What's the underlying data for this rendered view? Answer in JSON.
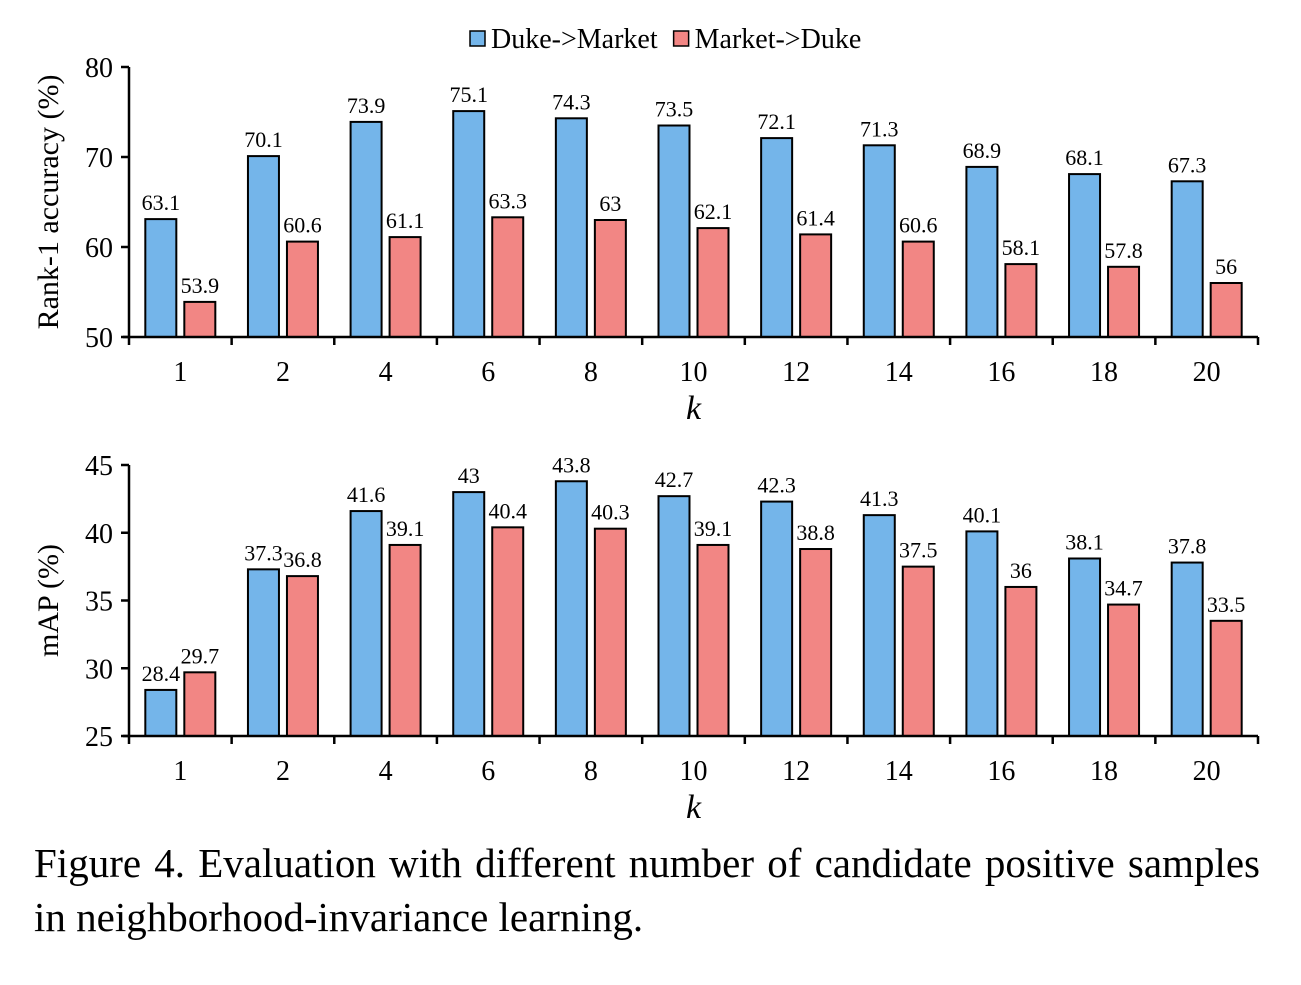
{
  "legend": [
    {
      "name": "Duke->Market",
      "color": "#74b5ea"
    },
    {
      "name": "Market->Duke",
      "color": "#f28684"
    }
  ],
  "chart_data": [
    {
      "type": "bar",
      "xlabel": "k",
      "ylabel": "Rank-1 accuracy (%)",
      "ylim": [
        50,
        80
      ],
      "yticks": [
        "50",
        "60",
        "70",
        "80"
      ],
      "categories": [
        "1",
        "2",
        "4",
        "6",
        "8",
        "10",
        "12",
        "14",
        "16",
        "18",
        "20"
      ],
      "legend_position": "top-center",
      "grid": false,
      "series": [
        {
          "name": "Duke->Market",
          "color": "#74b5ea",
          "values": [
            63.1,
            70.1,
            73.9,
            75.1,
            74.3,
            73.5,
            72.1,
            71.3,
            68.9,
            68.1,
            67.3
          ],
          "labels": [
            "63.1",
            "70.1",
            "73.9",
            "75.1",
            "74.3",
            "73.5",
            "72.1",
            "71.3",
            "68.9",
            "68.1",
            "67.3"
          ]
        },
        {
          "name": "Market->Duke",
          "color": "#f28684",
          "values": [
            53.9,
            60.6,
            61.1,
            63.3,
            63,
            62.1,
            61.4,
            60.6,
            58.1,
            57.8,
            56
          ],
          "labels": [
            "53.9",
            "60.6",
            "61.1",
            "63.3",
            "63",
            "62.1",
            "61.4",
            "60.6",
            "58.1",
            "57.8",
            "56"
          ]
        }
      ]
    },
    {
      "type": "bar",
      "xlabel": "k",
      "ylabel": "mAP (%)",
      "ylim": [
        25,
        45
      ],
      "yticks": [
        "25",
        "30",
        "35",
        "40",
        "45"
      ],
      "categories": [
        "1",
        "2",
        "4",
        "6",
        "8",
        "10",
        "12",
        "14",
        "16",
        "18",
        "20"
      ],
      "grid": false,
      "series": [
        {
          "name": "Duke->Market",
          "color": "#74b5ea",
          "values": [
            28.4,
            37.3,
            41.6,
            43,
            43.8,
            42.7,
            42.3,
            41.3,
            40.1,
            38.1,
            37.8
          ],
          "labels": [
            "28.4",
            "37.3",
            "41.6",
            "43",
            "43.8",
            "42.7",
            "42.3",
            "41.3",
            "40.1",
            "38.1",
            "37.8"
          ]
        },
        {
          "name": "Market->Duke",
          "color": "#f28684",
          "values": [
            29.7,
            36.8,
            39.1,
            40.4,
            40.3,
            39.1,
            38.8,
            37.5,
            36,
            34.7,
            33.5
          ],
          "labels": [
            "29.7",
            "36.8",
            "39.1",
            "40.4",
            "40.3",
            "39.1",
            "38.8",
            "37.5",
            "36",
            "34.7",
            "33.5"
          ]
        }
      ]
    }
  ],
  "caption": "Figure 4. Evaluation with different number of candidate positive samples in neighborhood-invariance learning."
}
